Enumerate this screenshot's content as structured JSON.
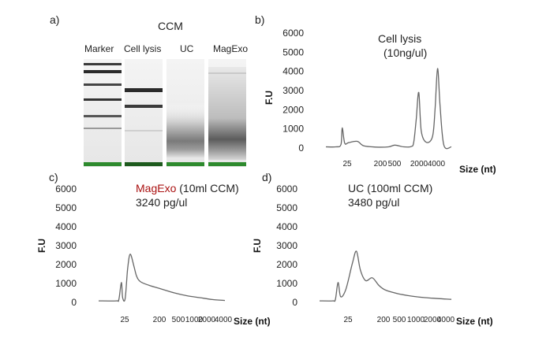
{
  "figure": {
    "gel": {
      "panel_label": "a)",
      "title": "CCM",
      "lanes": [
        {
          "name": "Marker",
          "color": "#222222"
        },
        {
          "name": "Cell lysis",
          "color": "#222222"
        },
        {
          "name": "UC",
          "color": "#222222"
        },
        {
          "name": "MagExo",
          "color": "#aa1111"
        }
      ]
    },
    "y_axis_label": "F.U",
    "x_axis_label": "Size  (nt)",
    "y_ticks": [
      "0",
      "1000",
      "2000",
      "3000",
      "4000",
      "5000",
      "6000"
    ],
    "x_ticks": [
      "25",
      "200",
      "500",
      "2000",
      "4000"
    ],
    "x_ticks_short": [
      "25",
      "200",
      "500",
      "1000",
      "2000",
      "4000"
    ]
  },
  "chart_data": [
    {
      "type": "line",
      "panel": "b)",
      "annotation_lines": [
        "Cell lysis",
        "(10ng/ul)"
      ],
      "xlabel": "Size  (nt)",
      "ylabel": "F.U",
      "ylim": [
        0,
        6000
      ],
      "x_tick_labels": [
        "25",
        "200",
        "500",
        "2000",
        "4000"
      ],
      "peaks_description": "marker peak at 25 nt; major peaks near 2000 and 4000 nt",
      "x": [
        0,
        0.08,
        0.12,
        0.13,
        0.15,
        0.18,
        0.25,
        0.3,
        0.4,
        0.5,
        0.55,
        0.62,
        0.68,
        0.7,
        0.72,
        0.74,
        0.76,
        0.8,
        0.85,
        0.87,
        0.89,
        0.91,
        0.94,
        1.0
      ],
      "y": [
        60,
        60,
        180,
        1050,
        250,
        280,
        350,
        120,
        50,
        60,
        150,
        60,
        80,
        300,
        1500,
        2900,
        900,
        300,
        600,
        2000,
        4150,
        2200,
        150,
        60
      ]
    },
    {
      "type": "line",
      "panel": "c)",
      "annotation_highlight": "MagExo",
      "annotation_rest": " (10ml CCM)",
      "annotation_conc": "3240 pg/ul",
      "highlight_color": "#aa1111",
      "xlabel": "Size  (nt)",
      "ylabel": "F.U",
      "ylim": [
        0,
        6000
      ],
      "x_tick_labels": [
        "25",
        "200",
        "500",
        "1000",
        "2000",
        "4000"
      ],
      "x": [
        0,
        0.14,
        0.16,
        0.18,
        0.19,
        0.21,
        0.23,
        0.25,
        0.28,
        0.3,
        0.33,
        0.4,
        0.5,
        0.6,
        0.7,
        0.8,
        0.9,
        1.0
      ],
      "y": [
        80,
        80,
        150,
        1050,
        250,
        200,
        1800,
        2550,
        1900,
        1400,
        1100,
        900,
        700,
        500,
        350,
        250,
        150,
        100
      ]
    },
    {
      "type": "line",
      "panel": "d)",
      "annotation_lines": [
        "UC (100ml CCM)",
        "3480 pg/ul"
      ],
      "xlabel": "Size  (nt)",
      "ylabel": "F.U",
      "ylim": [
        0,
        6000
      ],
      "x_tick_labels": [
        "25",
        "200",
        "500",
        "1000",
        "2000",
        "4000"
      ],
      "x": [
        0,
        0.1,
        0.12,
        0.14,
        0.16,
        0.2,
        0.25,
        0.28,
        0.31,
        0.35,
        0.4,
        0.45,
        0.5,
        0.6,
        0.7,
        0.8,
        0.9,
        1.0
      ],
      "y": [
        80,
        80,
        150,
        1050,
        300,
        700,
        2100,
        2700,
        1700,
        1150,
        1300,
        900,
        650,
        450,
        330,
        250,
        200,
        160
      ]
    }
  ]
}
